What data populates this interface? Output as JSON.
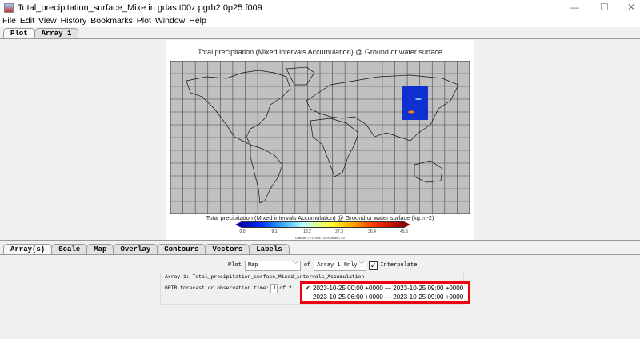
{
  "window": {
    "title": "Total_precipitation_surface_Mixe in gdas.t00z.pgrb2.0p25.f009",
    "minimize": "—",
    "maximize": "☐",
    "close": "✕"
  },
  "menu": [
    "File",
    "Edit",
    "View",
    "History",
    "Bookmarks",
    "Plot",
    "Window",
    "Help"
  ],
  "top_tabs": [
    {
      "label": "Plot",
      "active": true
    },
    {
      "label": "Array 1",
      "active": false
    }
  ],
  "plot": {
    "title": "Total precipitation (Mixed intervals Accumulation) @ Ground or water surface",
    "colorbar_title": "Total precipitation (Mixed intervals Accumulation) @ Ground or water surface (kg.m-2)",
    "colorbar_ticks": [
      "0.0",
      "9.1",
      "18.2",
      "27.3",
      "36.4",
      "45.5"
    ],
    "stats": "Data Min = 0.0, Max = 45.5, Mean = 0.0",
    "grid_spacing_deg": 15,
    "colors": {
      "ocean": "#c0c0c0",
      "data": "#1030d0"
    }
  },
  "bottom_tabs": [
    {
      "label": "Array(s)",
      "active": true
    },
    {
      "label": "Scale"
    },
    {
      "label": "Map"
    },
    {
      "label": "Overlay"
    },
    {
      "label": "Contours"
    },
    {
      "label": "Vectors"
    },
    {
      "label": "Labels"
    }
  ],
  "controls": {
    "plot_label": "Plot",
    "plot_type": "Map",
    "of_label": "of",
    "array_select": "Array 1 Only",
    "interpolate_label": "Interpolate",
    "interpolate_checked": true,
    "array_info": "Array 1: Total_precipitation_surface_Mixed_intervals_Accumulation",
    "time_label": "GRIB forecast or observation time:",
    "time_index": "1",
    "time_of": "of 2",
    "time_options": [
      {
        "label": "2023-10-25 00:00 +0000 — 2023-10-25 09:00 +0000",
        "selected": true
      },
      {
        "label": "2023-10-25 06:00 +0000 — 2023-10-25 09:00 +0000",
        "selected": false
      }
    ]
  }
}
